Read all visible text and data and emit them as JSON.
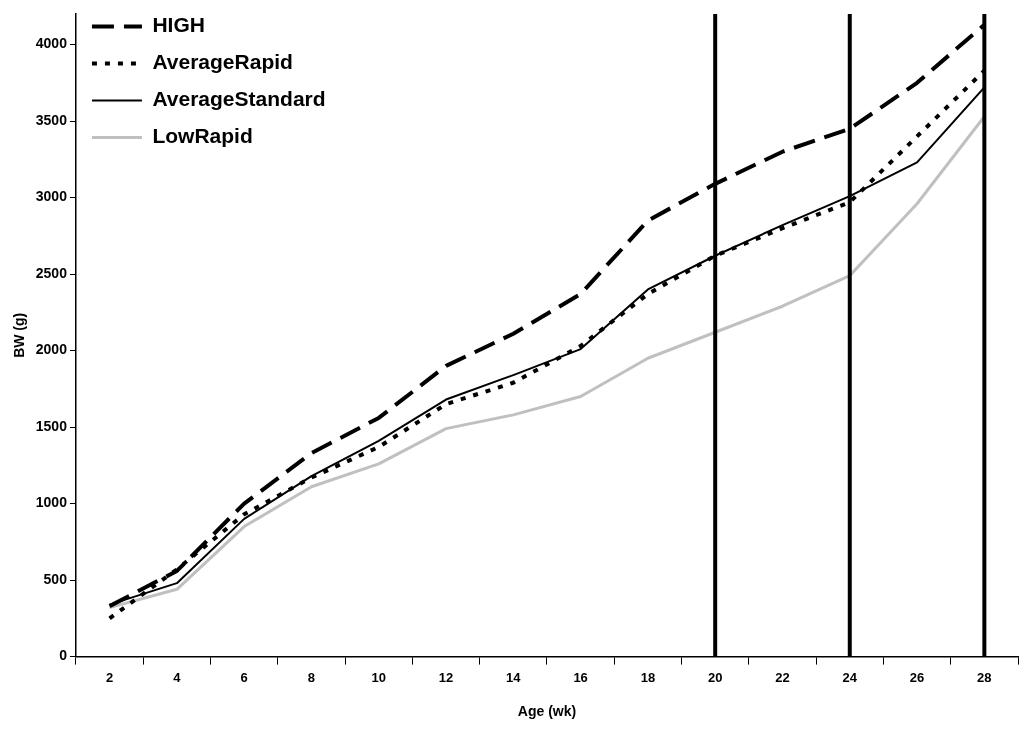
{
  "chart_data": {
    "type": "line",
    "xlabel": "Age (wk)",
    "ylabel": "BW (g)",
    "x": [
      2,
      4,
      6,
      8,
      10,
      12,
      14,
      16,
      18,
      20,
      22,
      24,
      26,
      28
    ],
    "xlim": [
      1,
      29
    ],
    "xticks": [
      {
        "value": 1,
        "label": null
      },
      2,
      {
        "value": 3,
        "label": null
      },
      4,
      {
        "value": 5,
        "label": null
      },
      6,
      {
        "value": 7,
        "label": null
      },
      8,
      {
        "value": 9,
        "label": null
      },
      10,
      {
        "value": 11,
        "label": null
      },
      12,
      {
        "value": 13,
        "label": null
      },
      14,
      {
        "value": 15,
        "label": null
      },
      16,
      {
        "value": 17,
        "label": null
      },
      18,
      {
        "value": 19,
        "label": null
      },
      20,
      {
        "value": 21,
        "label": null
      },
      22,
      {
        "value": 23,
        "label": null
      },
      24,
      {
        "value": 25,
        "label": null
      },
      26,
      {
        "value": 27,
        "label": null
      },
      28,
      {
        "value": 29,
        "label": null
      }
    ],
    "ylim": [
      0,
      4200
    ],
    "yticks": [
      0,
      500,
      1000,
      1500,
      2000,
      2500,
      3000,
      3500,
      4000
    ],
    "grid": false,
    "legend": "top left",
    "marker": "none",
    "series": [
      {
        "name": "HIGH",
        "color": "#000000",
        "line_style": "dashed",
        "values": [
          330,
          560,
          1000,
          1330,
          1560,
          1900,
          2110,
          2370,
          2850,
          3090,
          3300,
          3450,
          3750,
          4130
        ]
      },
      {
        "name": "AverageRapid",
        "color": "#000000",
        "line_style": "dotted",
        "values": [
          250,
          570,
          930,
          1170,
          1370,
          1650,
          1790,
          2030,
          2370,
          2620,
          2800,
          2970,
          3400,
          3830
        ]
      },
      {
        "name": "AverageStandard",
        "color": "#000000",
        "line_style": "solid",
        "values": [
          340,
          480,
          900,
          1180,
          1410,
          1680,
          1840,
          2010,
          2400,
          2620,
          2820,
          3010,
          3230,
          3720
        ]
      },
      {
        "name": "LowRapid",
        "color": "#c0c0c0",
        "line_style": "solid",
        "values": [
          320,
          440,
          850,
          1110,
          1260,
          1490,
          1580,
          1700,
          1950,
          2120,
          2290,
          2490,
          2960,
          3530
        ]
      }
    ],
    "ref_lines": [
      {
        "axis": "x",
        "value": 20,
        "color": "#000000"
      },
      {
        "axis": "x",
        "value": 24,
        "color": "#000000"
      },
      {
        "axis": "x",
        "value": 28,
        "color": "#000000"
      }
    ]
  }
}
